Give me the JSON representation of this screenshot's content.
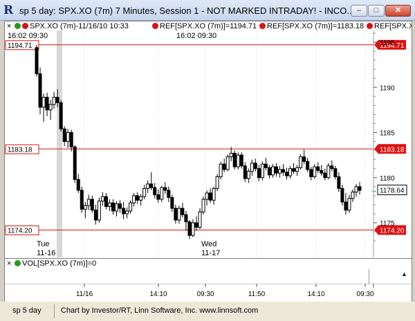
{
  "window": {
    "title": "sp 5 day: SPX.XO (7m) 7 Minutes, Session 1 - NOT MARKED INTRADAY! - INCO...",
    "minimize_symbol": "–",
    "maximize_symbol": "□",
    "close_symbol": "✕"
  },
  "legend": {
    "series": "SPX.XO (7m)-11/16/10 10:33",
    "ref1": "REF[SPX.XO (7m)]=1194.71",
    "ref2": "REF[SPX.XO (7m)]=1183.18",
    "ref3": "REF[SPX.XO (",
    "close_symbol": "×",
    "colors": {
      "green": "#1f9d1f",
      "red": "#dd1111"
    }
  },
  "time_labels": {
    "left": "16:02   09:30",
    "middle": "16:02   09:30"
  },
  "day_labels": [
    {
      "day": "Tue",
      "date": "11-16"
    },
    {
      "day": "Wed",
      "date": "11-17"
    }
  ],
  "vol_pane": {
    "label": "VOL[SPX.XO (7m)]=0",
    "close_symbol": "×",
    "arrow_symbol": "▲"
  },
  "statusbar": {
    "name": "sp 5 day",
    "credit": "Chart by Investor/RT, Linn Software, Inc. www.linnsoft.com"
  },
  "chart_data": {
    "type": "candlestick",
    "y_axis": {
      "min": 1172.0,
      "max": 1196.2,
      "ticks": [
        1175,
        1180,
        1185,
        1190,
        1195
      ],
      "side": "right"
    },
    "reference_lines": [
      {
        "value": 1194.71,
        "label": "1194.71",
        "color": "#dd1111"
      },
      {
        "value": 1183.18,
        "label": "1183.18",
        "color": "#dd1111"
      },
      {
        "value": 1174.2,
        "label": "1174.20",
        "color": "#dd1111"
      }
    ],
    "last_price": {
      "value": 1178.64,
      "label": "1178.64",
      "color": "#1f9d1f"
    },
    "x_tick_labels": [
      "11/16",
      "14:10",
      "09:30",
      "11:50",
      "14:10",
      "09:30"
    ],
    "candles": [
      [
        1194.4,
        1194.7,
        1191.2,
        1191.5
      ],
      [
        1191.5,
        1192.2,
        1187.0,
        1187.8
      ],
      [
        1187.8,
        1189.3,
        1186.2,
        1188.9
      ],
      [
        1188.9,
        1189.4,
        1186.8,
        1187.5
      ],
      [
        1187.5,
        1188.6,
        1186.4,
        1188.1
      ],
      [
        1188.1,
        1189.5,
        1187.6,
        1188.9
      ],
      [
        1188.9,
        1189.8,
        1187.8,
        1188.3
      ],
      [
        1188.3,
        1188.6,
        1185.1,
        1185.4
      ],
      [
        1185.4,
        1185.7,
        1183.5,
        1184.0
      ],
      [
        1184.0,
        1185.4,
        1183.3,
        1185.0
      ],
      [
        1185.0,
        1185.3,
        1182.9,
        1183.4
      ],
      [
        1183.4,
        1183.6,
        1179.4,
        1179.8
      ],
      [
        1179.8,
        1180.4,
        1178.3,
        1178.6
      ],
      [
        1178.6,
        1179.0,
        1176.1,
        1176.5
      ],
      [
        1176.5,
        1177.3,
        1175.5,
        1176.9
      ],
      [
        1176.9,
        1178.1,
        1176.4,
        1177.6
      ],
      [
        1177.6,
        1178.0,
        1176.1,
        1176.4
      ],
      [
        1176.4,
        1177.0,
        1174.8,
        1175.3
      ],
      [
        1175.3,
        1177.8,
        1175.0,
        1177.4
      ],
      [
        1177.4,
        1178.4,
        1176.9,
        1177.9
      ],
      [
        1177.9,
        1178.3,
        1176.5,
        1176.8
      ],
      [
        1176.8,
        1177.6,
        1176.3,
        1177.2
      ],
      [
        1177.2,
        1177.6,
        1175.9,
        1176.3
      ],
      [
        1176.3,
        1177.4,
        1175.7,
        1177.1
      ],
      [
        1177.1,
        1177.5,
        1176.1,
        1176.6
      ],
      [
        1176.6,
        1177.3,
        1175.4,
        1176.0
      ],
      [
        1176.0,
        1176.7,
        1175.5,
        1176.3
      ],
      [
        1176.3,
        1177.5,
        1176.0,
        1177.2
      ],
      [
        1177.2,
        1178.3,
        1176.8,
        1178.0
      ],
      [
        1178.0,
        1178.4,
        1177.1,
        1177.5
      ],
      [
        1177.5,
        1178.2,
        1176.9,
        1177.9
      ],
      [
        1177.9,
        1179.2,
        1177.6,
        1178.8
      ],
      [
        1178.8,
        1179.7,
        1178.3,
        1179.3
      ],
      [
        1179.3,
        1180.6,
        1178.6,
        1178.9
      ],
      [
        1178.9,
        1179.4,
        1177.7,
        1178.1
      ],
      [
        1178.1,
        1178.7,
        1177.2,
        1177.6
      ],
      [
        1177.6,
        1179.1,
        1177.3,
        1178.9
      ],
      [
        1178.9,
        1179.5,
        1178.2,
        1178.6
      ],
      [
        1178.6,
        1179.0,
        1177.3,
        1177.8
      ],
      [
        1177.8,
        1178.1,
        1176.2,
        1176.6
      ],
      [
        1176.6,
        1177.0,
        1174.9,
        1175.3
      ],
      [
        1175.3,
        1176.9,
        1174.9,
        1176.6
      ],
      [
        1176.6,
        1177.2,
        1175.6,
        1175.9
      ],
      [
        1175.9,
        1176.3,
        1174.1,
        1175.1
      ],
      [
        1175.1,
        1175.3,
        1173.2,
        1173.6
      ],
      [
        1173.6,
        1175.4,
        1173.4,
        1175.0
      ],
      [
        1175.0,
        1175.7,
        1174.1,
        1174.5
      ],
      [
        1174.5,
        1176.6,
        1174.3,
        1176.2
      ],
      [
        1176.2,
        1177.9,
        1175.9,
        1177.6
      ],
      [
        1177.6,
        1178.6,
        1176.9,
        1178.3
      ],
      [
        1178.3,
        1178.8,
        1177.2,
        1177.5
      ],
      [
        1177.5,
        1179.0,
        1177.0,
        1178.8
      ],
      [
        1178.8,
        1180.4,
        1178.5,
        1180.1
      ],
      [
        1180.1,
        1181.8,
        1179.8,
        1181.5
      ],
      [
        1181.5,
        1182.1,
        1180.6,
        1180.9
      ],
      [
        1180.9,
        1182.6,
        1180.7,
        1182.3
      ],
      [
        1182.3,
        1183.4,
        1181.8,
        1182.7
      ],
      [
        1182.7,
        1183.0,
        1180.9,
        1181.2
      ],
      [
        1181.2,
        1182.8,
        1180.9,
        1182.5
      ],
      [
        1182.5,
        1182.8,
        1181.0,
        1181.3
      ],
      [
        1181.3,
        1181.7,
        1179.5,
        1179.9
      ],
      [
        1179.9,
        1181.0,
        1179.4,
        1180.7
      ],
      [
        1180.7,
        1182.0,
        1180.2,
        1181.6
      ],
      [
        1181.6,
        1182.1,
        1180.7,
        1181.0
      ],
      [
        1181.0,
        1181.4,
        1179.6,
        1180.0
      ],
      [
        1180.0,
        1181.8,
        1179.7,
        1181.5
      ],
      [
        1181.5,
        1182.2,
        1180.8,
        1181.1
      ],
      [
        1181.1,
        1181.4,
        1179.9,
        1180.3
      ],
      [
        1180.3,
        1181.5,
        1180.0,
        1181.2
      ],
      [
        1181.2,
        1181.6,
        1180.1,
        1180.5
      ],
      [
        1180.5,
        1181.3,
        1180.0,
        1180.9
      ],
      [
        1180.9,
        1181.5,
        1180.2,
        1180.6
      ],
      [
        1180.6,
        1181.1,
        1179.8,
        1180.2
      ],
      [
        1180.2,
        1181.3,
        1179.9,
        1181.0
      ],
      [
        1181.0,
        1181.6,
        1180.4,
        1180.7
      ],
      [
        1180.7,
        1181.4,
        1180.2,
        1181.1
      ],
      [
        1181.1,
        1182.6,
        1180.9,
        1182.3
      ],
      [
        1182.3,
        1183.1,
        1181.5,
        1181.8
      ],
      [
        1181.8,
        1182.2,
        1180.6,
        1180.9
      ],
      [
        1180.9,
        1181.2,
        1179.7,
        1180.1
      ],
      [
        1180.1,
        1181.5,
        1179.9,
        1181.2
      ],
      [
        1181.2,
        1181.7,
        1180.5,
        1180.8
      ],
      [
        1180.8,
        1181.4,
        1180.2,
        1180.5
      ],
      [
        1180.5,
        1181.0,
        1179.7,
        1180.0
      ],
      [
        1180.0,
        1181.6,
        1179.8,
        1181.3
      ],
      [
        1181.3,
        1181.9,
        1180.7,
        1181.0
      ],
      [
        1181.0,
        1181.3,
        1179.8,
        1180.1
      ],
      [
        1180.1,
        1180.6,
        1178.4,
        1178.8
      ],
      [
        1178.8,
        1179.2,
        1176.9,
        1177.3
      ],
      [
        1177.3,
        1178.3,
        1175.9,
        1176.4
      ],
      [
        1176.4,
        1178.1,
        1176.1,
        1177.7
      ],
      [
        1177.7,
        1178.7,
        1177.3,
        1178.4
      ],
      [
        1178.4,
        1179.3,
        1177.9,
        1179.0
      ],
      [
        1179.0,
        1179.5,
        1178.1,
        1178.6
      ]
    ]
  }
}
